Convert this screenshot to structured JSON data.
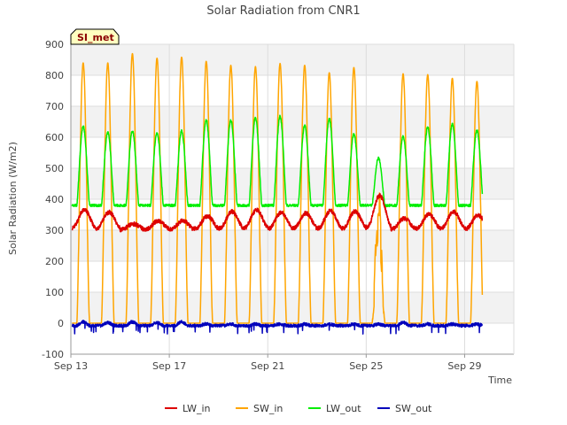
{
  "chart_data": {
    "type": "line",
    "title": "Solar Radiation from CNR1",
    "xlabel": "Time",
    "ylabel": "Solar Radiation (W/m2)",
    "badge": "SI_met",
    "xlim": [
      13,
      31
    ],
    "ylim": [
      -100,
      900
    ],
    "yticks": [
      -100,
      0,
      100,
      200,
      300,
      400,
      500,
      600,
      700,
      800,
      900
    ],
    "xticks": [
      {
        "day": 13,
        "label": "Sep 13"
      },
      {
        "day": 17,
        "label": "Sep 17"
      },
      {
        "day": 21,
        "label": "Sep 21"
      },
      {
        "day": 25,
        "label": "Sep 25"
      },
      {
        "day": 29,
        "label": "Sep 29"
      }
    ],
    "grid": true,
    "legend": "bottom-center",
    "series": [
      {
        "name": "LW_in",
        "color": "#dd0000"
      },
      {
        "name": "SW_in",
        "color": "#ffa500"
      },
      {
        "name": "LW_out",
        "color": "#00ee00"
      },
      {
        "name": "SW_out",
        "color": "#0000bb"
      }
    ],
    "daily": [
      {
        "day": 13,
        "sw_in_peak": 840,
        "lw_out_peak": 635,
        "lw_in_peak": 365,
        "sw_out_peak": 12
      },
      {
        "day": 14,
        "sw_in_peak": 840,
        "lw_out_peak": 615,
        "lw_in_peak": 358,
        "sw_out_peak": 10
      },
      {
        "day": 15,
        "sw_in_peak": 870,
        "lw_out_peak": 620,
        "lw_in_peak": 320,
        "sw_out_peak": 12
      },
      {
        "day": 16,
        "sw_in_peak": 855,
        "lw_out_peak": 615,
        "lw_in_peak": 330,
        "sw_out_peak": 10
      },
      {
        "day": 17,
        "sw_in_peak": 858,
        "lw_out_peak": 620,
        "lw_in_peak": 330,
        "sw_out_peak": 12
      },
      {
        "day": 18,
        "sw_in_peak": 845,
        "lw_out_peak": 655,
        "lw_in_peak": 345,
        "sw_out_peak": 6
      },
      {
        "day": 19,
        "sw_in_peak": 832,
        "lw_out_peak": 655,
        "lw_in_peak": 360,
        "sw_out_peak": 5
      },
      {
        "day": 20,
        "sw_in_peak": 828,
        "lw_out_peak": 662,
        "lw_in_peak": 365,
        "sw_out_peak": 5
      },
      {
        "day": 21,
        "sw_in_peak": 838,
        "lw_out_peak": 668,
        "lw_in_peak": 358,
        "sw_out_peak": 5
      },
      {
        "day": 22,
        "sw_in_peak": 832,
        "lw_out_peak": 638,
        "lw_in_peak": 355,
        "sw_out_peak": 5
      },
      {
        "day": 23,
        "sw_in_peak": 808,
        "lw_out_peak": 660,
        "lw_in_peak": 362,
        "sw_out_peak": 5
      },
      {
        "day": 24,
        "sw_in_peak": 825,
        "lw_out_peak": 610,
        "lw_in_peak": 360,
        "sw_out_peak": 5
      },
      {
        "day": 25,
        "sw_in_peak": 440,
        "lw_out_peak": 532,
        "lw_in_peak": 412,
        "sw_out_peak": 5
      },
      {
        "day": 26,
        "sw_in_peak": 805,
        "lw_out_peak": 602,
        "lw_in_peak": 338,
        "sw_out_peak": 10
      },
      {
        "day": 27,
        "sw_in_peak": 802,
        "lw_out_peak": 632,
        "lw_in_peak": 352,
        "sw_out_peak": 5
      },
      {
        "day": 28,
        "sw_in_peak": 790,
        "lw_out_peak": 642,
        "lw_in_peak": 360,
        "sw_out_peak": 5
      },
      {
        "day": 29,
        "sw_in_peak": 780,
        "lw_out_peak": 622,
        "lw_in_peak": 348,
        "sw_out_peak": 5
      }
    ]
  }
}
